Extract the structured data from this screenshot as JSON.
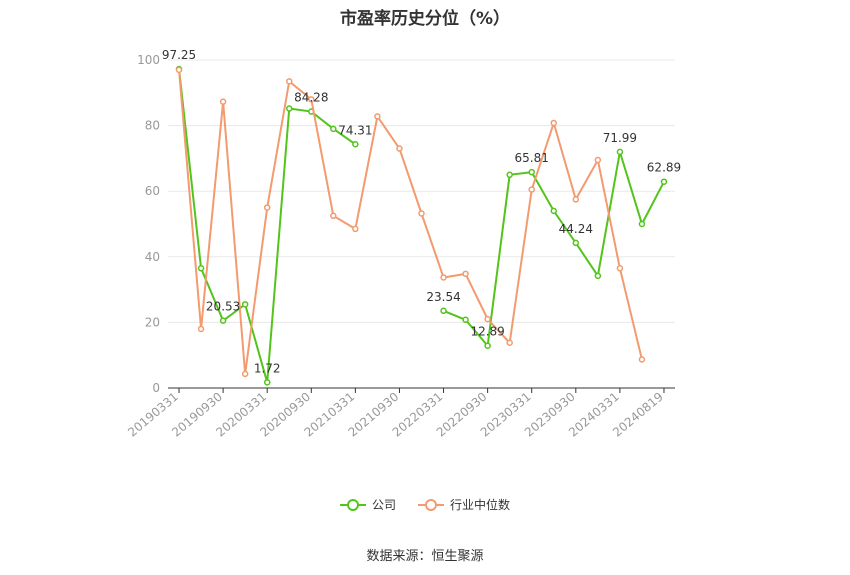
{
  "page": {
    "title": "市盈率历史分位（%）",
    "source": "数据来源：恒生聚源"
  },
  "colors": {
    "company": "#52c41a",
    "industry": "#f39a6e",
    "axis": "#333333",
    "grid": "#e8e8e8",
    "tick_label": "#999999",
    "data_label": "#333333"
  },
  "chart_data": {
    "type": "line",
    "title": "市盈率历史分位（%）",
    "xlabel": "",
    "ylabel": "",
    "ylim": [
      0,
      100
    ],
    "yticks": [
      0,
      20,
      40,
      60,
      80,
      100
    ],
    "grid": true,
    "legend_position": "bottom",
    "x": [
      "20190331",
      "20190630",
      "20190930",
      "20191231",
      "20200331",
      "20200630",
      "20200930",
      "20201231",
      "20210331",
      "20210630",
      "20210930",
      "20211231",
      "20220331",
      "20220630",
      "20220930",
      "20221231",
      "20230331",
      "20230630",
      "20230930",
      "20231231",
      "20240331",
      "20240630",
      "20240819"
    ],
    "xtick_labels": [
      "20190331",
      "20190930",
      "20200331",
      "20200930",
      "20210331",
      "20210930",
      "20220331",
      "20220930",
      "20230331",
      "20230930",
      "20240331",
      "20240819"
    ],
    "xtick_indices": [
      0,
      2,
      4,
      6,
      8,
      10,
      12,
      14,
      16,
      18,
      20,
      22
    ],
    "series": [
      {
        "name": "公司",
        "color": "#52c41a",
        "values": [
          97.25,
          36.5,
          20.53,
          25.5,
          1.72,
          85.2,
          84.28,
          79.0,
          74.31,
          null,
          null,
          null,
          23.54,
          20.8,
          12.89,
          65.0,
          65.81,
          54.0,
          44.24,
          34.2,
          71.99,
          50.0,
          62.89
        ]
      },
      {
        "name": "行业中位数",
        "color": "#f39a6e",
        "values": [
          97.0,
          18.0,
          87.3,
          4.3,
          55.0,
          93.5,
          88.0,
          52.5,
          48.5,
          82.8,
          73.0,
          53.2,
          33.7,
          34.8,
          21.0,
          13.8,
          60.5,
          80.8,
          57.5,
          69.5,
          36.5,
          8.7,
          null
        ]
      }
    ],
    "data_labels": [
      {
        "series": 0,
        "index": 0,
        "text": "97.25"
      },
      {
        "series": 0,
        "index": 2,
        "text": "20.53"
      },
      {
        "series": 0,
        "index": 4,
        "text": "1.72"
      },
      {
        "series": 0,
        "index": 6,
        "text": "84.28"
      },
      {
        "series": 0,
        "index": 8,
        "text": "74.31"
      },
      {
        "series": 0,
        "index": 12,
        "text": "23.54"
      },
      {
        "series": 0,
        "index": 14,
        "text": "12.89"
      },
      {
        "series": 0,
        "index": 16,
        "text": "65.81"
      },
      {
        "series": 0,
        "index": 18,
        "text": "44.24"
      },
      {
        "series": 0,
        "index": 20,
        "text": "71.99"
      },
      {
        "series": 0,
        "index": 22,
        "text": "62.89"
      }
    ]
  }
}
